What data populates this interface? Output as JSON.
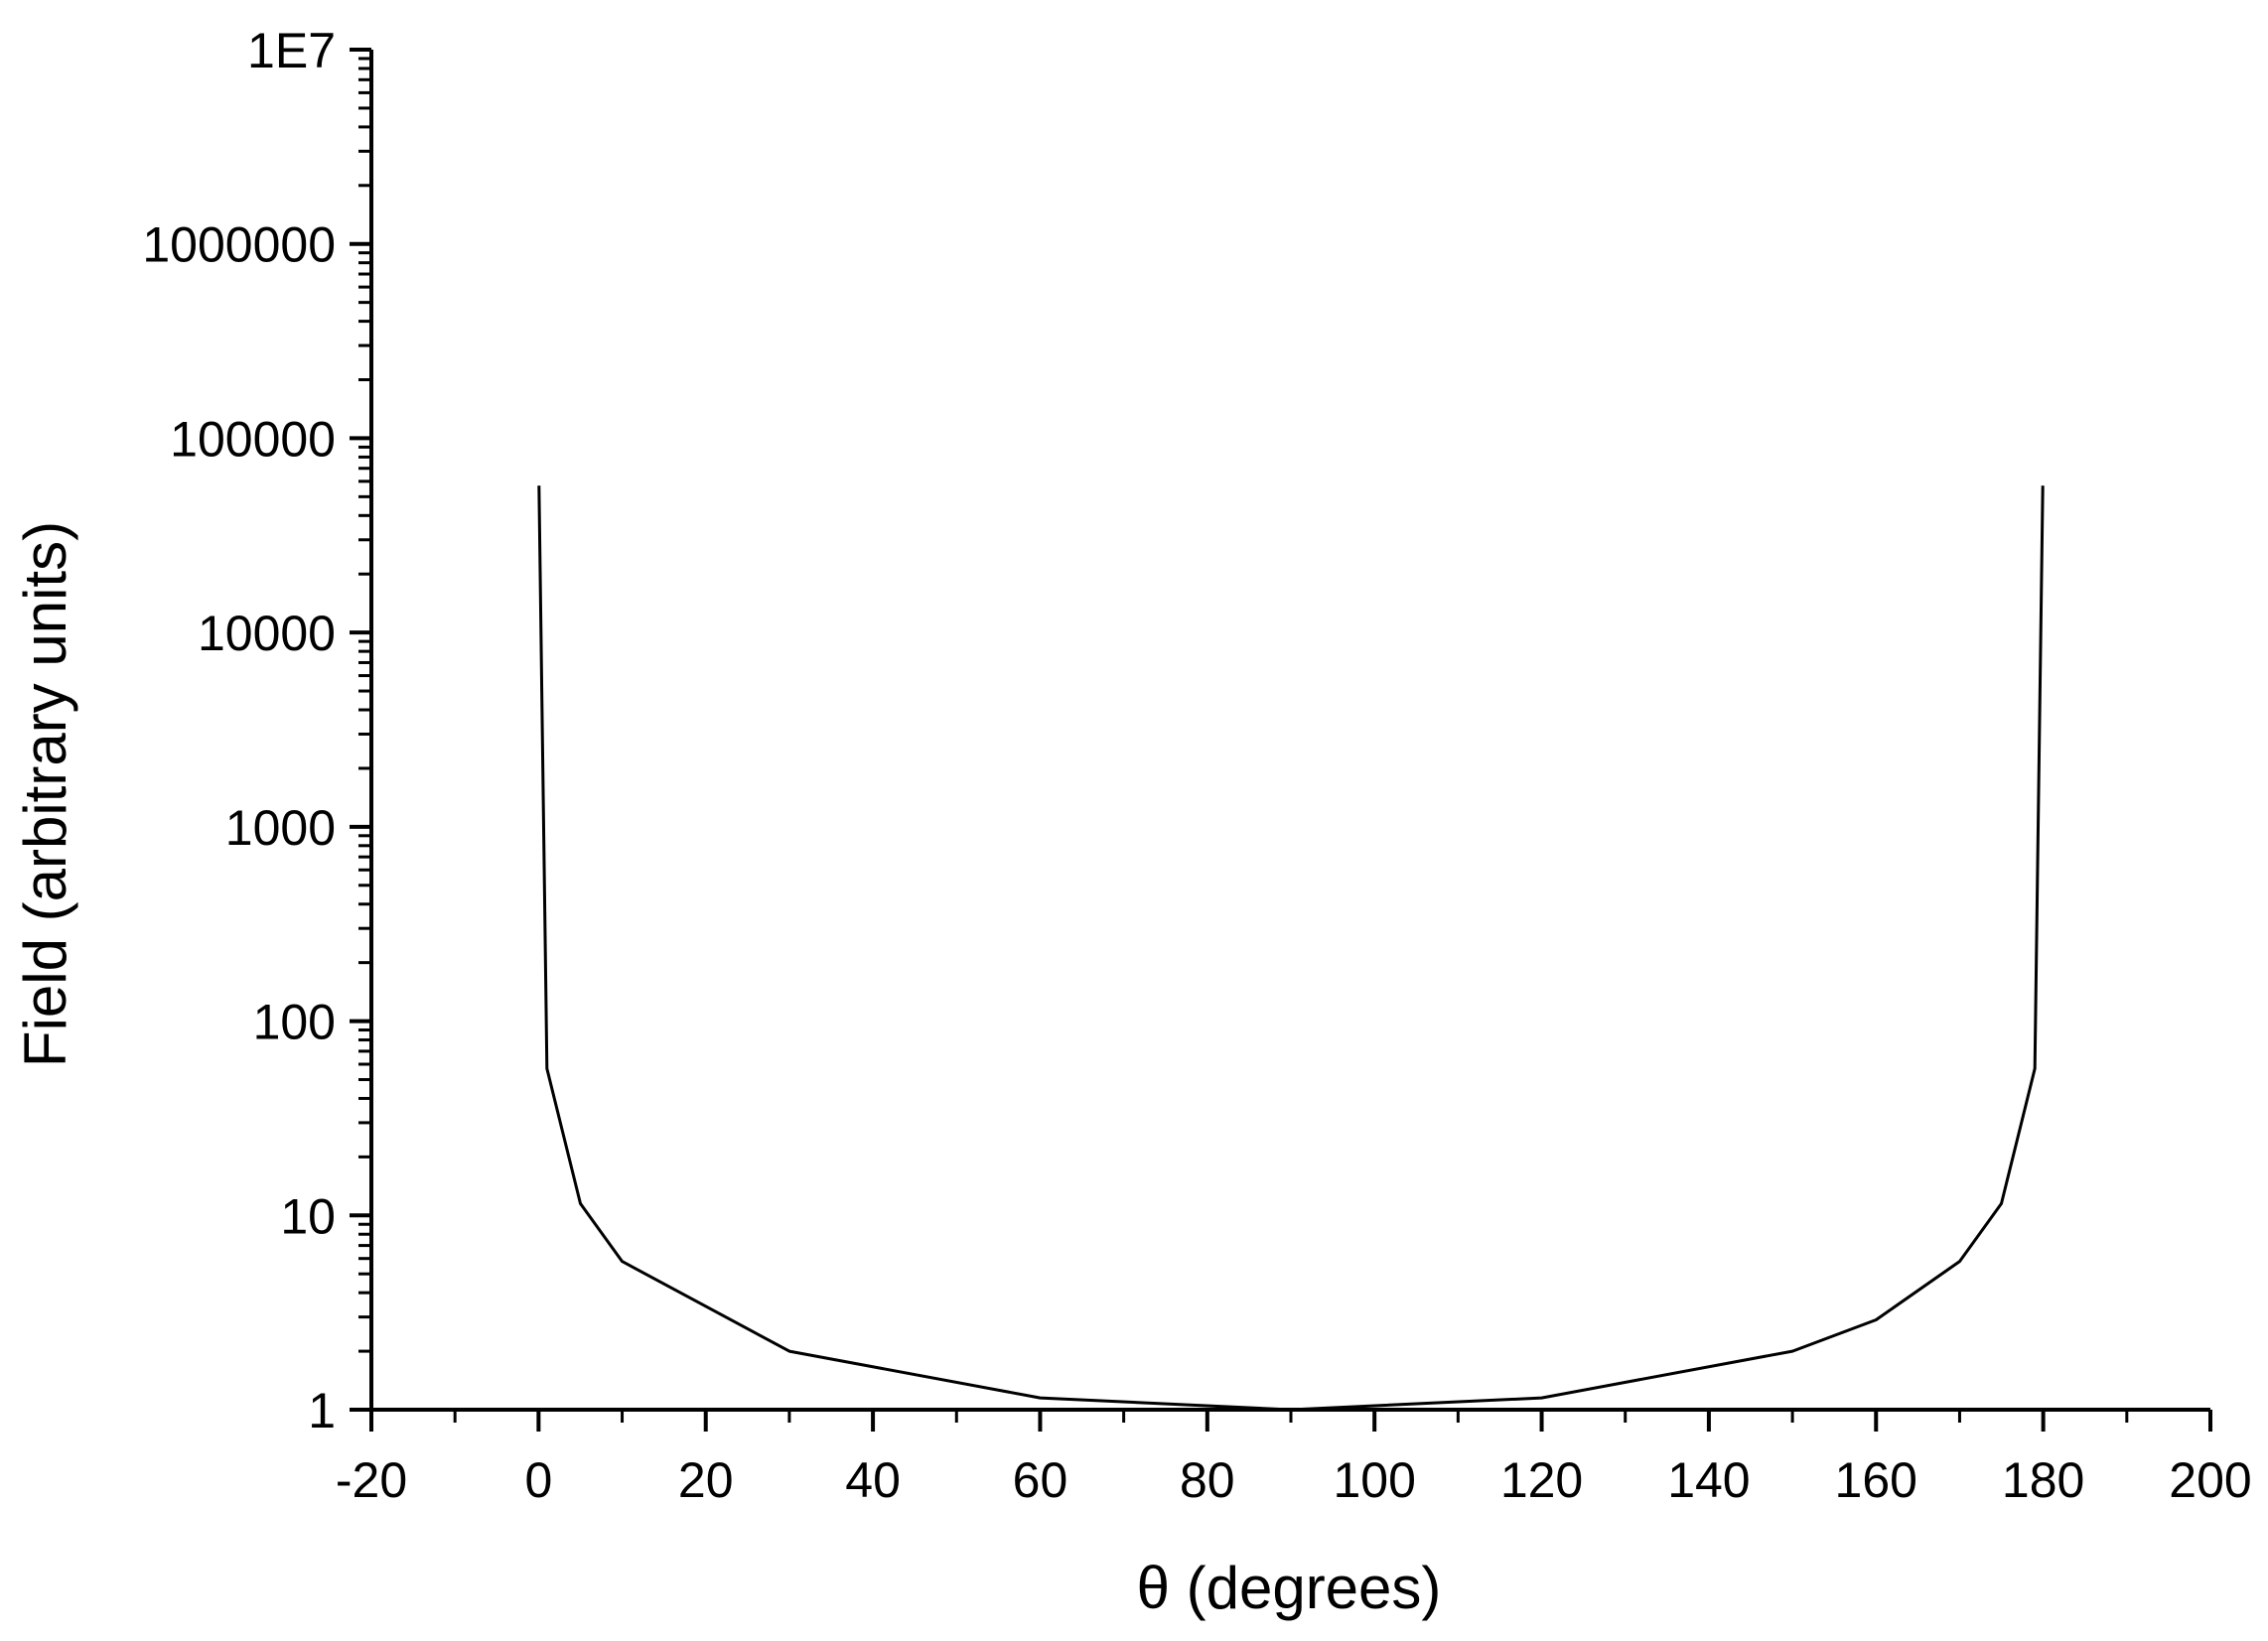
{
  "chart_data": {
    "type": "line",
    "title": "",
    "xlabel": "θ (degrees)",
    "ylabel": "Field (arbitrary units)",
    "xlim": [
      -20,
      200
    ],
    "ylim": [
      1,
      10000000
    ],
    "yscale": "log",
    "grid": false,
    "legend": "none",
    "x_ticks": [
      {
        "value": -20,
        "label": "-20"
      },
      {
        "value": 0,
        "label": "0"
      },
      {
        "value": 20,
        "label": "20"
      },
      {
        "value": 40,
        "label": "40"
      },
      {
        "value": 60,
        "label": "60"
      },
      {
        "value": 80,
        "label": "80"
      },
      {
        "value": 100,
        "label": "100"
      },
      {
        "value": 120,
        "label": "120"
      },
      {
        "value": 140,
        "label": "140"
      },
      {
        "value": 160,
        "label": "160"
      },
      {
        "value": 180,
        "label": "180"
      },
      {
        "value": 200,
        "label": "200"
      }
    ],
    "y_ticks": [
      {
        "value": 1,
        "label": "1"
      },
      {
        "value": 10,
        "label": "10"
      },
      {
        "value": 100,
        "label": "100"
      },
      {
        "value": 1000,
        "label": "1000"
      },
      {
        "value": 10000,
        "label": "10000"
      },
      {
        "value": 100000,
        "label": "100000"
      },
      {
        "value": 1000000,
        "label": "1000000"
      },
      {
        "value": 10000000,
        "label": "1E7"
      }
    ],
    "series": [
      {
        "color": "#000000",
        "x": [
          0.05,
          1,
          5,
          10,
          30,
          60,
          90,
          120,
          150,
          160,
          170,
          175,
          179,
          179.95
        ],
        "y": [
          57000,
          57,
          11.5,
          5.8,
          2.0,
          1.15,
          1.0,
          1.15,
          2.0,
          2.9,
          5.8,
          11.5,
          57,
          57000
        ]
      }
    ]
  }
}
